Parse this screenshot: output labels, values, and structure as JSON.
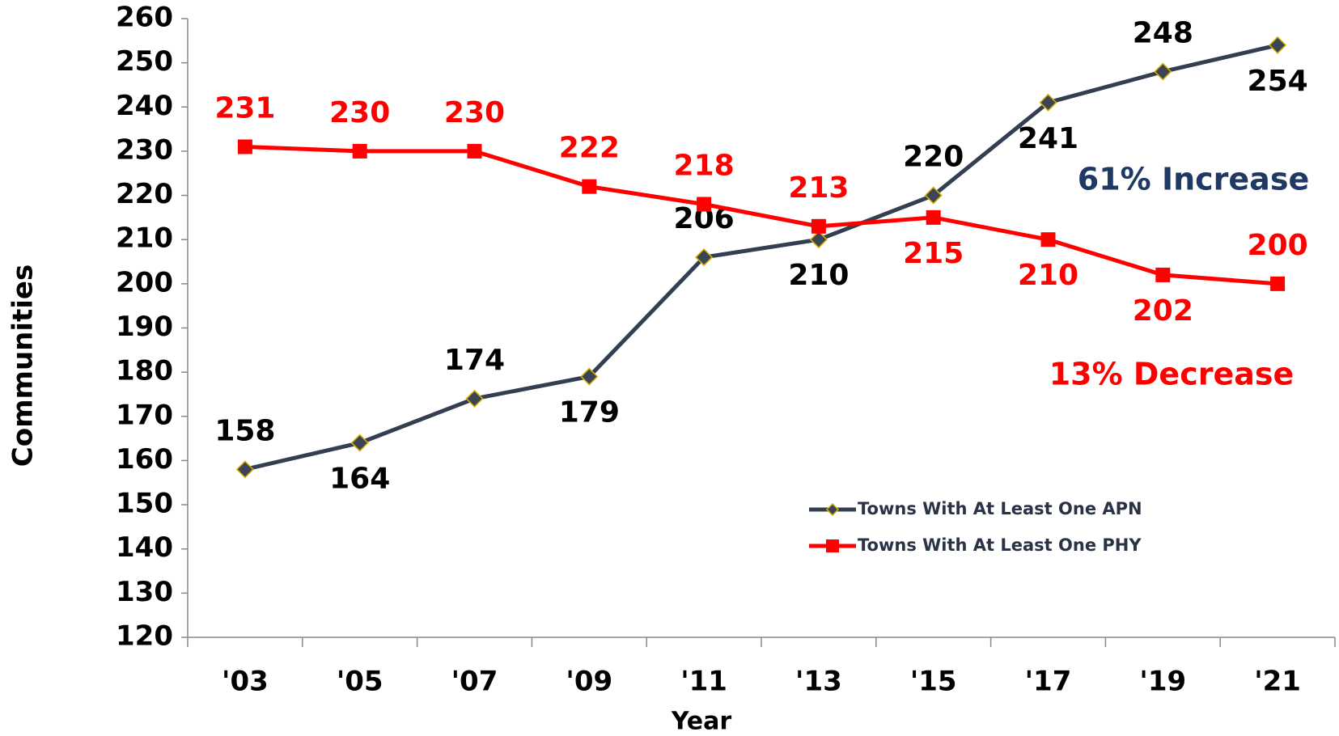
{
  "chart_data": {
    "type": "line",
    "x_label": "Year",
    "y_label": "Communities",
    "categories": [
      "'03",
      "'05",
      "'07",
      "'09",
      "'11",
      "'13",
      "'15",
      "'17",
      "'19",
      "'21"
    ],
    "series": [
      {
        "name": "Towns With At Least One APN",
        "color": "#333f50",
        "values": [
          158,
          164,
          174,
          179,
          206,
          210,
          220,
          241,
          248,
          254
        ]
      },
      {
        "name": "Towns With At Least One PHY",
        "color": "#ff0000",
        "values": [
          231,
          230,
          230,
          222,
          218,
          213,
          215,
          210,
          202,
          200
        ]
      }
    ],
    "ylim": [
      120,
      260
    ],
    "yticks": [
      120,
      130,
      140,
      150,
      160,
      170,
      180,
      190,
      200,
      210,
      220,
      230,
      240,
      250,
      260
    ],
    "annotations": [
      {
        "text": "61% Increase",
        "color": "#1f3864"
      },
      {
        "text": "13% Decrease",
        "color": "#ff0000"
      }
    ],
    "legend": "lower-center"
  }
}
